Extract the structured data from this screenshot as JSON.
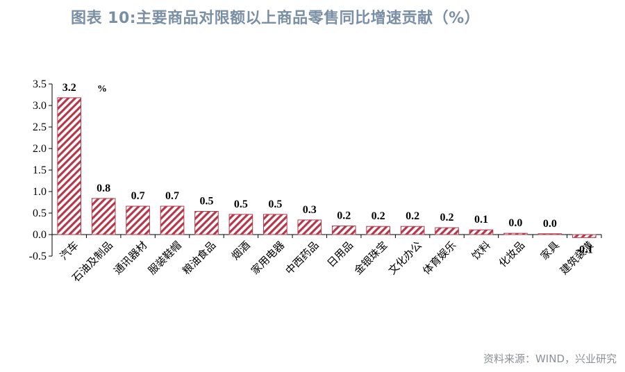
{
  "title": "图表 10:主要商品对限额以上商品零售同比增速贡献（%）",
  "source": "资料来源：WIND，兴业研究",
  "colors": {
    "bar_stripe": "#b5384a",
    "title": "#7a8fa6",
    "axis": "#000000"
  },
  "chart_data": {
    "type": "bar",
    "unit": "%",
    "categories": [
      "汽车",
      "石油及制品",
      "通讯器材",
      "服装鞋帽",
      "粮油食品",
      "烟酒",
      "家用电器",
      "中西药品",
      "日用品",
      "金银珠宝",
      "文化办公",
      "体育娱乐",
      "饮料",
      "化妆品",
      "家具",
      "建筑装潢"
    ],
    "values": [
      3.18,
      0.84,
      0.66,
      0.66,
      0.54,
      0.47,
      0.47,
      0.34,
      0.2,
      0.19,
      0.19,
      0.16,
      0.11,
      0.03,
      0.02,
      -0.07
    ],
    "data_labels": [
      "3.2",
      "0.8",
      "0.7",
      "0.7",
      "0.5",
      "0.5",
      "0.5",
      "0.3",
      "0.2",
      "0.2",
      "0.2",
      "0.2",
      "0.1",
      "0.0",
      "0.0",
      "-0.1"
    ],
    "yticks": [
      "3.5",
      "3.0",
      "2.5",
      "2.0",
      "1.5",
      "1.0",
      "0.5",
      "0.0",
      "-0.5"
    ],
    "ytick_values": [
      3.5,
      3.0,
      2.5,
      2.0,
      1.5,
      1.0,
      0.5,
      0.0,
      -0.5
    ],
    "ylim": [
      -0.5,
      3.5
    ],
    "grid": false,
    "legend": "none"
  }
}
